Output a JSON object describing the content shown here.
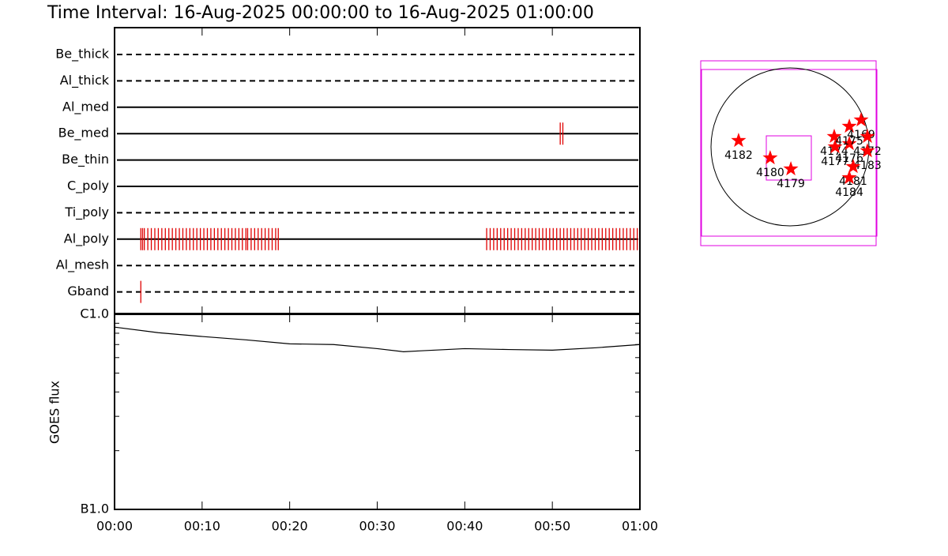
{
  "title": "Time Interval: 16-Aug-2025 00:00:00 to 16-Aug-2025 01:00:00",
  "chart_data": [
    {
      "type": "timeline",
      "categories": [
        "Be_thick",
        "Al_thick",
        "Al_med",
        "Be_med",
        "Be_thin",
        "C_poly",
        "Ti_poly",
        "Al_poly",
        "Al_mesh",
        "Gband"
      ],
      "line_styles": [
        "dashed",
        "dashed",
        "solid",
        "solid",
        "solid",
        "solid",
        "dashed",
        "solid",
        "dashed",
        "dashed"
      ],
      "event_color": "#e00000",
      "events": [
        [],
        [],
        [],
        [
          50.9,
          51.2
        ],
        [],
        [],
        [],
        [
          3.0,
          3.2,
          3.4,
          3.8,
          4.2,
          4.6,
          5.0,
          5.4,
          5.8,
          6.2,
          6.6,
          7.0,
          7.4,
          7.8,
          8.2,
          8.6,
          9.0,
          9.4,
          9.8,
          10.2,
          10.6,
          11.0,
          11.4,
          11.8,
          12.2,
          12.6,
          13.0,
          13.4,
          13.8,
          14.2,
          14.6,
          15.0,
          15.2,
          15.6,
          16.0,
          16.4,
          16.8,
          17.2,
          17.6,
          18.0,
          18.4,
          18.7,
          42.5,
          42.9,
          43.3,
          43.7,
          44.1,
          44.5,
          44.9,
          45.3,
          45.7,
          46.1,
          46.5,
          46.9,
          47.3,
          47.7,
          48.1,
          48.5,
          48.9,
          49.3,
          49.7,
          50.1,
          50.5,
          50.9,
          51.3,
          51.7,
          52.1,
          52.5,
          52.9,
          53.3,
          53.7,
          54.1,
          54.5,
          54.9,
          55.3,
          55.7,
          56.1,
          56.5,
          56.9,
          57.3,
          57.7,
          58.1,
          58.5,
          58.9,
          59.3,
          59.7
        ],
        [],
        [
          3.0
        ]
      ]
    },
    {
      "type": "line",
      "ylabel": "GOES flux",
      "log_scale": true,
      "color": "#000000",
      "x": [
        0,
        5,
        10,
        15,
        20,
        25,
        30,
        33,
        35,
        40,
        45,
        50,
        55,
        60
      ],
      "values": [
        8.6e-07,
        8.05e-07,
        7.7e-07,
        7.4e-07,
        7.06e-07,
        7e-07,
        6.67e-07,
        6.43e-07,
        6.5e-07,
        6.67e-07,
        6.6e-07,
        6.55e-07,
        6.74e-07,
        7e-07
      ],
      "xlim": [
        0,
        60
      ],
      "xticks": [
        {
          "value": 0,
          "label": "00:00"
        },
        {
          "value": 10,
          "label": "00:10"
        },
        {
          "value": 20,
          "label": "00:20"
        },
        {
          "value": 30,
          "label": "00:30"
        },
        {
          "value": 40,
          "label": "00:40"
        },
        {
          "value": 50,
          "label": "00:50"
        },
        {
          "value": 60,
          "label": "01:00"
        }
      ],
      "ylim": [
        1e-07,
        1e-06
      ],
      "yticks": [
        {
          "value": 1e-07,
          "label": "B1.0"
        },
        {
          "value": 1e-06,
          "label": "C1.0"
        }
      ],
      "minor_yticks": [
        2e-07,
        3e-07,
        4e-07,
        5e-07,
        6e-07,
        7e-07,
        8e-07,
        9e-07
      ]
    },
    {
      "type": "map",
      "color": "#ff0000",
      "labels": [
        "4182",
        "4180",
        "4179",
        "4174",
        "4177",
        "4176",
        "4175",
        "4169",
        "4172",
        "4183",
        "4181",
        "4184"
      ],
      "x": [
        -618,
        -238,
        10,
        532,
        542,
        713,
        713,
        855,
        931,
        931,
        760,
        713
      ],
      "y": [
        76,
        -133,
        -266,
        124,
        0,
        38,
        247,
        323,
        124,
        -48,
        -238,
        -371
      ]
    }
  ]
}
